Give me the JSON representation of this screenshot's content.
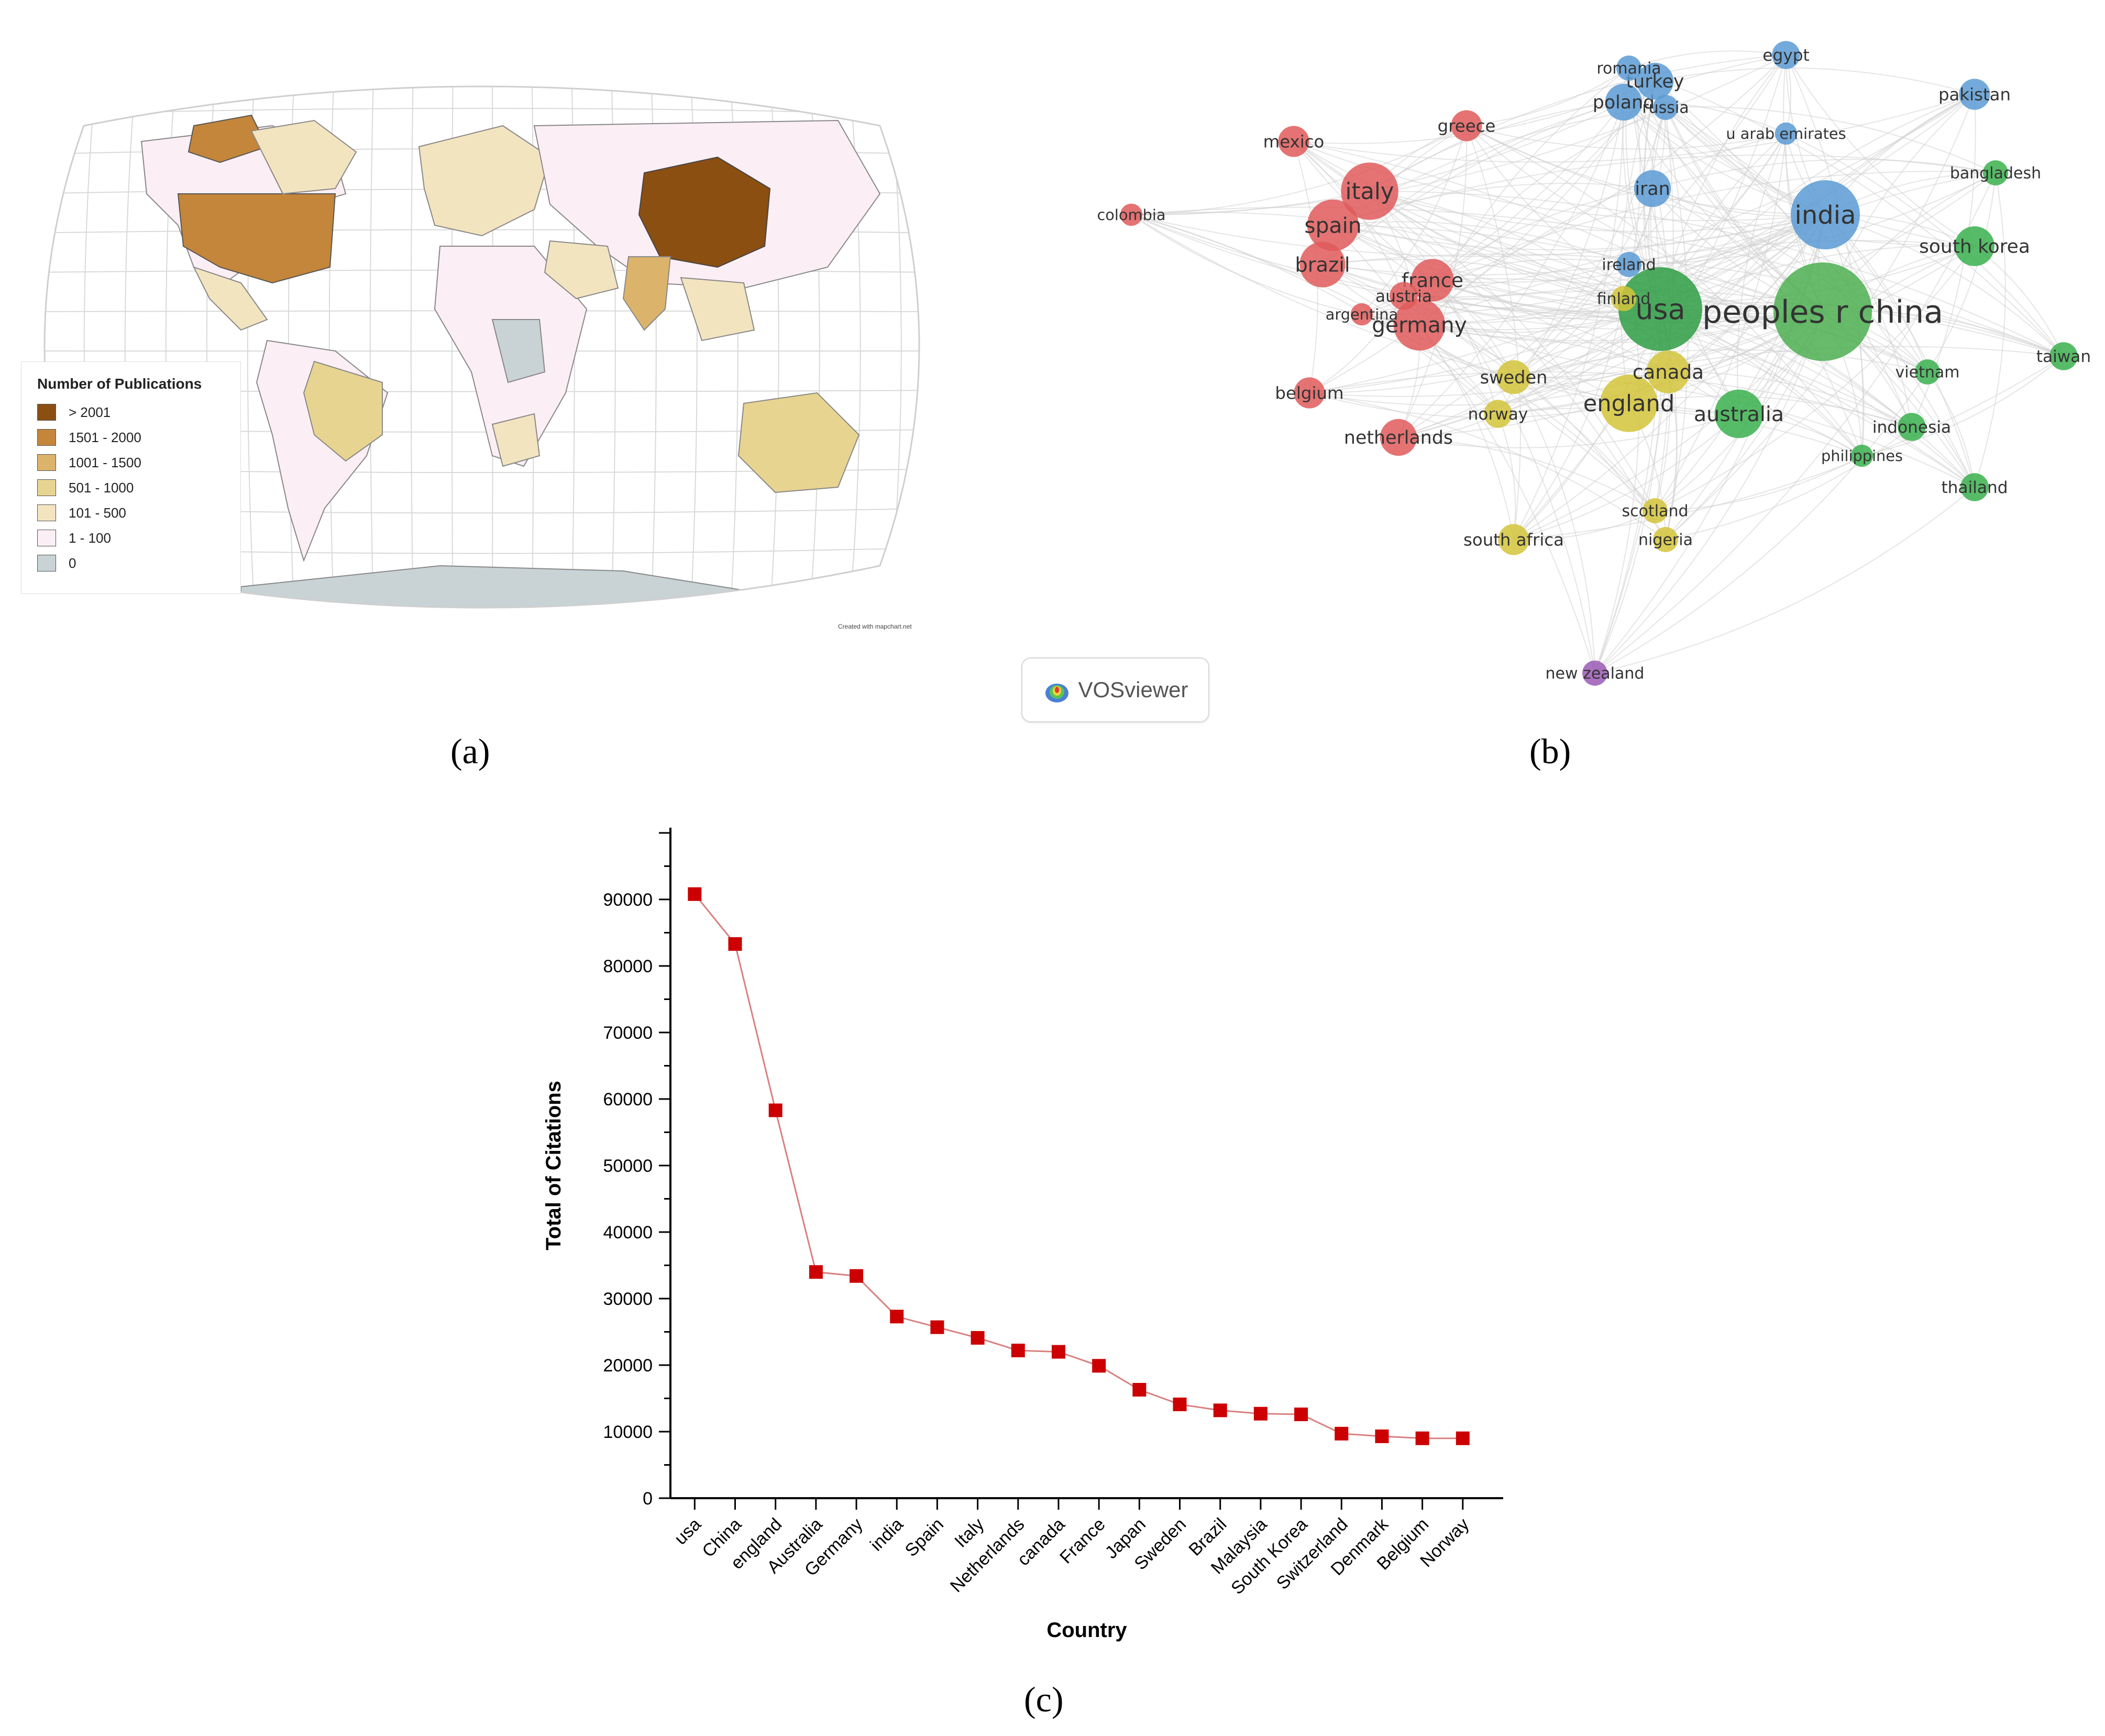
{
  "captions": {
    "a": "(a)",
    "b": "(b)",
    "c": "(c)"
  },
  "map": {
    "legend_title": "Number of Publications",
    "legend": [
      {
        "label": "> 2001",
        "color": "#8b4f12"
      },
      {
        "label": "1501 - 2000",
        "color": "#c4863a"
      },
      {
        "label": "1001 - 1500",
        "color": "#dcb36a"
      },
      {
        "label": "501 - 1000",
        "color": "#e8d491"
      },
      {
        "label": "101 - 500",
        "color": "#f3e4c0"
      },
      {
        "label": "1 - 100",
        "color": "#fbeef4"
      },
      {
        "label": "0",
        "color": "#c9d3d6"
      }
    ],
    "credit": "Created with mapchart.net"
  },
  "network": {
    "badge_text": "VOSviewer",
    "nodes": [
      {
        "label": "peoples r china",
        "color": "#4caf50",
        "size": 3
      },
      {
        "label": "usa",
        "color": "#2e9e44",
        "size": 2.5
      },
      {
        "label": "india",
        "color": "#5b9bd5",
        "size": 2
      },
      {
        "label": "italy",
        "color": "#e05a5a",
        "size": 1.6
      },
      {
        "label": "spain",
        "color": "#e05a5a",
        "size": 1.4
      },
      {
        "label": "germany",
        "color": "#e05a5a",
        "size": 1.4
      },
      {
        "label": "england",
        "color": "#d4c43a",
        "size": 1.6
      },
      {
        "label": "brazil",
        "color": "#e05a5a",
        "size": 1.2
      },
      {
        "label": "france",
        "color": "#e05a5a",
        "size": 1.1
      },
      {
        "label": "australia",
        "color": "#3ab04d",
        "size": 1.3
      },
      {
        "label": "canada",
        "color": "#d4c43a",
        "size": 1.1
      },
      {
        "label": "south korea",
        "color": "#3ab04d",
        "size": 1
      },
      {
        "label": "iran",
        "color": "#5b9bd5",
        "size": 0.9
      },
      {
        "label": "poland",
        "color": "#5b9bd5",
        "size": 0.9
      },
      {
        "label": "turkey",
        "color": "#5b9bd5",
        "size": 0.9
      },
      {
        "label": "romania",
        "color": "#5b9bd5",
        "size": 0.5
      },
      {
        "label": "russia",
        "color": "#5b9bd5",
        "size": 0.5
      },
      {
        "label": "egypt",
        "color": "#5b9bd5",
        "size": 0.6
      },
      {
        "label": "pakistan",
        "color": "#5b9bd5",
        "size": 0.7
      },
      {
        "label": "u arab emirates",
        "color": "#5b9bd5",
        "size": 0.4
      },
      {
        "label": "bangladesh",
        "color": "#3ab04d",
        "size": 0.5
      },
      {
        "label": "greece",
        "color": "#e05a5a",
        "size": 0.7
      },
      {
        "label": "mexico",
        "color": "#e05a5a",
        "size": 0.7
      },
      {
        "label": "colombia",
        "color": "#e05a5a",
        "size": 0.4
      },
      {
        "label": "ireland",
        "color": "#5b9bd5",
        "size": 0.5
      },
      {
        "label": "finland",
        "color": "#d4c43a",
        "size": 0.5
      },
      {
        "label": "austria",
        "color": "#e05a5a",
        "size": 0.6
      },
      {
        "label": "argentina",
        "color": "#e05a5a",
        "size": 0.4
      },
      {
        "label": "sweden",
        "color": "#d4c43a",
        "size": 0.8
      },
      {
        "label": "norway",
        "color": "#d4c43a",
        "size": 0.6
      },
      {
        "label": "belgium",
        "color": "#e05a5a",
        "size": 0.7
      },
      {
        "label": "netherlands",
        "color": "#e05a5a",
        "size": 0.9
      },
      {
        "label": "vietnam",
        "color": "#3ab04d",
        "size": 0.5
      },
      {
        "label": "taiwan",
        "color": "#3ab04d",
        "size": 0.6
      },
      {
        "label": "indonesia",
        "color": "#3ab04d",
        "size": 0.6
      },
      {
        "label": "philippines",
        "color": "#3ab04d",
        "size": 0.4
      },
      {
        "label": "thailand",
        "color": "#3ab04d",
        "size": 0.6
      },
      {
        "label": "scotland",
        "color": "#d4c43a",
        "size": 0.5
      },
      {
        "label": "nigeria",
        "color": "#d4c43a",
        "size": 0.5
      },
      {
        "label": "south africa",
        "color": "#d4c43a",
        "size": 0.7
      },
      {
        "label": "new zealand",
        "color": "#9b59b6",
        "size": 0.5
      }
    ]
  },
  "chart_data": {
    "type": "line",
    "categories": [
      "usa",
      "China",
      "england",
      "Australia",
      "Germany",
      "india",
      "Spain",
      "Italy",
      "Netherlands",
      "canada",
      "France",
      "Japan",
      "Sweden",
      "Brazil",
      "Malaysia",
      "South Korea",
      "Switzerland",
      "Denmark",
      "Belgium",
      "Norway"
    ],
    "values": [
      90800,
      83300,
      58300,
      34000,
      33400,
      27300,
      25700,
      24100,
      22200,
      22000,
      19900,
      16300,
      14100,
      13200,
      12700,
      12600,
      9700,
      9300,
      9000,
      9000
    ],
    "xlabel": "Country",
    "ylabel": "Total of Citations",
    "ylim": [
      0,
      100000
    ],
    "yticks": [
      "0",
      "10000",
      "20000",
      "30000",
      "40000",
      "50000",
      "60000",
      "70000",
      "80000",
      "90000"
    ],
    "marker": "square",
    "marker_color": "#cc0000",
    "line_color": "#d98080",
    "grid": false
  }
}
